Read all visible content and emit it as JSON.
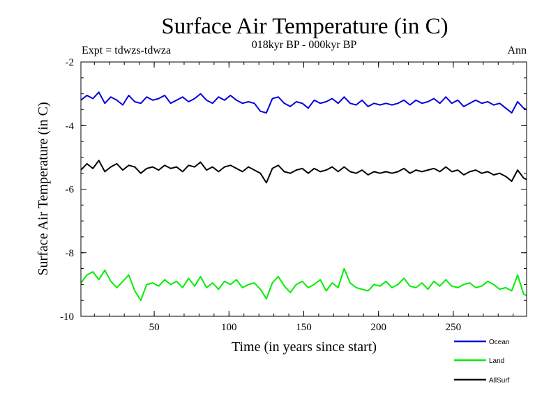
{
  "chart_data": {
    "type": "line",
    "title": "Surface Air Temperature (in C)",
    "subtitle": "018kyr BP - 000kyr BP",
    "experiment": "Expt = tdwzs-tdwza",
    "season": "Ann",
    "xlabel": "Time (in years since start)",
    "ylabel": "Surface Air Temperature (in C)",
    "xlim": [
      1,
      299
    ],
    "ylim": [
      -10,
      -2
    ],
    "xticks": [
      50,
      100,
      150,
      200,
      250
    ],
    "yticks": [
      -10,
      -8,
      -6,
      -4,
      -2
    ],
    "ytick_labels": [
      "-10",
      "-8",
      "-6",
      "-4",
      "-2"
    ],
    "legend_position": "bottom-right",
    "x": [
      1,
      5,
      9,
      13,
      17,
      21,
      25,
      29,
      33,
      37,
      41,
      45,
      49,
      53,
      57,
      61,
      65,
      69,
      73,
      77,
      81,
      85,
      89,
      93,
      97,
      101,
      105,
      109,
      113,
      117,
      121,
      125,
      129,
      133,
      137,
      141,
      145,
      149,
      153,
      157,
      161,
      165,
      169,
      173,
      177,
      181,
      185,
      189,
      193,
      197,
      201,
      205,
      209,
      213,
      217,
      221,
      225,
      229,
      233,
      237,
      241,
      245,
      249,
      253,
      257,
      261,
      265,
      269,
      273,
      277,
      281,
      285,
      289,
      293,
      297,
      299
    ],
    "series": [
      {
        "name": "Ocean",
        "color": "#0000dd",
        "values": [
          -3.2,
          -3.05,
          -3.15,
          -2.95,
          -3.3,
          -3.1,
          -3.2,
          -3.35,
          -3.05,
          -3.25,
          -3.3,
          -3.1,
          -3.2,
          -3.15,
          -3.05,
          -3.3,
          -3.2,
          -3.1,
          -3.25,
          -3.15,
          -3.0,
          -3.2,
          -3.3,
          -3.1,
          -3.2,
          -3.05,
          -3.2,
          -3.3,
          -3.25,
          -3.3,
          -3.55,
          -3.6,
          -3.15,
          -3.1,
          -3.3,
          -3.4,
          -3.25,
          -3.3,
          -3.45,
          -3.2,
          -3.3,
          -3.25,
          -3.15,
          -3.3,
          -3.1,
          -3.3,
          -3.35,
          -3.2,
          -3.4,
          -3.3,
          -3.35,
          -3.3,
          -3.35,
          -3.3,
          -3.2,
          -3.35,
          -3.2,
          -3.3,
          -3.25,
          -3.15,
          -3.3,
          -3.1,
          -3.3,
          -3.2,
          -3.4,
          -3.3,
          -3.2,
          -3.3,
          -3.25,
          -3.35,
          -3.3,
          -3.45,
          -3.6,
          -3.25,
          -3.45,
          -3.5
        ]
      },
      {
        "name": "Land",
        "color": "#00ee00",
        "values": [
          -8.95,
          -8.7,
          -8.6,
          -8.85,
          -8.55,
          -8.9,
          -9.1,
          -8.9,
          -8.7,
          -9.2,
          -9.5,
          -9.0,
          -8.95,
          -9.05,
          -8.85,
          -9.0,
          -8.9,
          -9.1,
          -8.8,
          -9.05,
          -8.75,
          -9.1,
          -8.95,
          -9.15,
          -8.9,
          -9.0,
          -8.85,
          -9.1,
          -9.0,
          -8.95,
          -9.15,
          -9.45,
          -8.95,
          -8.75,
          -9.05,
          -9.25,
          -9.0,
          -8.9,
          -9.1,
          -9.0,
          -8.85,
          -9.2,
          -8.95,
          -9.1,
          -8.5,
          -8.95,
          -9.1,
          -9.15,
          -9.2,
          -9.0,
          -9.05,
          -8.9,
          -9.1,
          -9.0,
          -8.8,
          -9.05,
          -9.1,
          -8.95,
          -9.15,
          -8.9,
          -9.05,
          -8.85,
          -9.05,
          -9.1,
          -9.0,
          -8.95,
          -9.1,
          -9.05,
          -8.9,
          -9.0,
          -9.15,
          -9.1,
          -9.2,
          -8.7,
          -9.3,
          -9.35
        ]
      },
      {
        "name": "AllSurf",
        "color": "#000000",
        "values": [
          -5.4,
          -5.2,
          -5.35,
          -5.1,
          -5.45,
          -5.3,
          -5.2,
          -5.4,
          -5.25,
          -5.3,
          -5.5,
          -5.35,
          -5.3,
          -5.4,
          -5.25,
          -5.35,
          -5.3,
          -5.45,
          -5.25,
          -5.3,
          -5.15,
          -5.4,
          -5.3,
          -5.45,
          -5.3,
          -5.25,
          -5.35,
          -5.45,
          -5.3,
          -5.4,
          -5.5,
          -5.8,
          -5.35,
          -5.25,
          -5.45,
          -5.5,
          -5.4,
          -5.35,
          -5.5,
          -5.35,
          -5.45,
          -5.4,
          -5.3,
          -5.45,
          -5.3,
          -5.45,
          -5.5,
          -5.4,
          -5.55,
          -5.45,
          -5.5,
          -5.45,
          -5.5,
          -5.45,
          -5.35,
          -5.5,
          -5.4,
          -5.45,
          -5.4,
          -5.35,
          -5.45,
          -5.3,
          -5.45,
          -5.4,
          -5.55,
          -5.45,
          -5.4,
          -5.5,
          -5.45,
          -5.55,
          -5.5,
          -5.6,
          -5.75,
          -5.4,
          -5.65,
          -5.7
        ]
      }
    ]
  }
}
